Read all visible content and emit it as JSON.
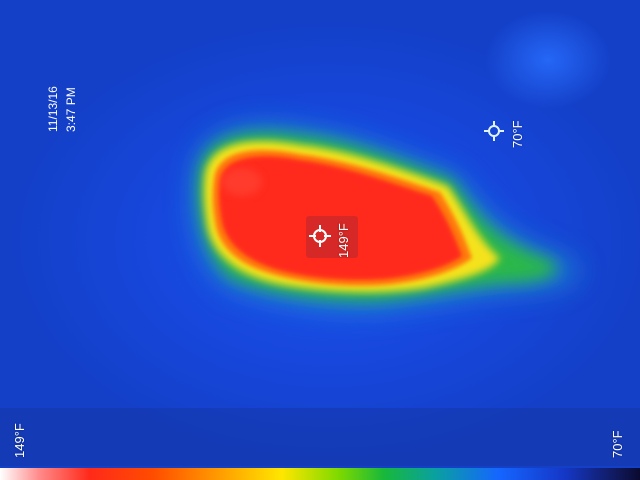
{
  "capture": {
    "date": "11/13/16",
    "time": "3:47 PM"
  },
  "spot_center": {
    "temperature": "149°F",
    "icon": "crosshair-icon"
  },
  "spot_cold": {
    "temperature": "70°F",
    "icon": "crosshair-icon"
  },
  "scale": {
    "max_label": "149°F",
    "min_label": "70°F"
  },
  "colors": {
    "background_cold": "#1a4fe0",
    "hot_core": "#ff2a1a",
    "warm_edge": "#ffe600",
    "transition": "#18b83a",
    "spot_box": "#d22828"
  }
}
